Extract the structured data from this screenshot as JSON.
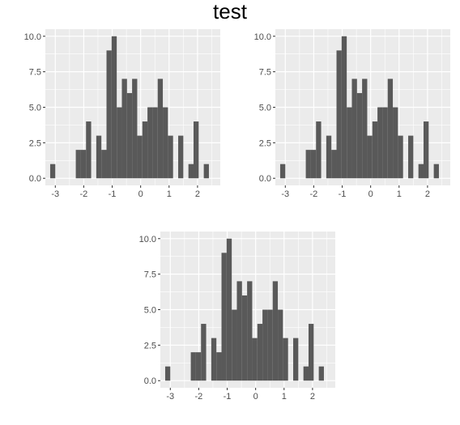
{
  "figure": {
    "title": "test"
  },
  "chart_data": [
    {
      "type": "bar",
      "title": "",
      "xlabel": "",
      "ylabel": "",
      "x_bin_starts": [
        -3.18,
        -3.0,
        -2.82,
        -2.64,
        -2.46,
        -2.28,
        -2.1,
        -1.92,
        -1.74,
        -1.56,
        -1.38,
        -1.2,
        -1.02,
        -0.84,
        -0.66,
        -0.48,
        -0.3,
        -0.12,
        0.06,
        0.24,
        0.42,
        0.6,
        0.78,
        0.96,
        1.14,
        1.32,
        1.5,
        1.68,
        1.86,
        2.04,
        2.22,
        2.4
      ],
      "bin_width": 0.18,
      "values": [
        1,
        0,
        0,
        0,
        0,
        2,
        2,
        4,
        0,
        3,
        2,
        9,
        10,
        5,
        7,
        6,
        7,
        3,
        4,
        5,
        5,
        7,
        5,
        3,
        0,
        3,
        0,
        1,
        4,
        0,
        1,
        0
      ],
      "xlim": [
        -3.35,
        2.8
      ],
      "ylim": [
        -0.5,
        10.5
      ],
      "x_ticks": [
        -3,
        -2,
        -1,
        0,
        1,
        2
      ],
      "x_tick_labels": [
        "-3",
        "-2",
        "-1",
        "0",
        "1",
        "2"
      ],
      "y_ticks": [
        0,
        2.5,
        5,
        7.5,
        10
      ],
      "y_tick_labels": [
        "0.0",
        "2.5",
        "5.0",
        "7.5",
        "10.0"
      ],
      "bar_color": "#595959",
      "panel_bg": "#ebebeb",
      "grid_color": "#ffffff"
    },
    {
      "type": "bar",
      "title": "",
      "xlabel": "",
      "ylabel": "",
      "x_bin_starts": [
        -3.18,
        -3.0,
        -2.82,
        -2.64,
        -2.46,
        -2.28,
        -2.1,
        -1.92,
        -1.74,
        -1.56,
        -1.38,
        -1.2,
        -1.02,
        -0.84,
        -0.66,
        -0.48,
        -0.3,
        -0.12,
        0.06,
        0.24,
        0.42,
        0.6,
        0.78,
        0.96,
        1.14,
        1.32,
        1.5,
        1.68,
        1.86,
        2.04,
        2.22,
        2.4
      ],
      "bin_width": 0.18,
      "values": [
        1,
        0,
        0,
        0,
        0,
        2,
        2,
        4,
        0,
        3,
        2,
        9,
        10,
        5,
        7,
        6,
        7,
        3,
        4,
        5,
        5,
        7,
        5,
        3,
        0,
        3,
        0,
        1,
        4,
        0,
        1,
        0
      ],
      "xlim": [
        -3.35,
        2.8
      ],
      "ylim": [
        -0.5,
        10.5
      ],
      "x_ticks": [
        -3,
        -2,
        -1,
        0,
        1,
        2
      ],
      "x_tick_labels": [
        "-3",
        "-2",
        "-1",
        "0",
        "1",
        "2"
      ],
      "y_ticks": [
        0,
        2.5,
        5,
        7.5,
        10
      ],
      "y_tick_labels": [
        "0.0",
        "2.5",
        "5.0",
        "7.5",
        "10.0"
      ],
      "bar_color": "#595959",
      "panel_bg": "#ebebeb",
      "grid_color": "#ffffff"
    },
    {
      "type": "bar",
      "title": "",
      "xlabel": "",
      "ylabel": "",
      "x_bin_starts": [
        -3.18,
        -3.0,
        -2.82,
        -2.64,
        -2.46,
        -2.28,
        -2.1,
        -1.92,
        -1.74,
        -1.56,
        -1.38,
        -1.2,
        -1.02,
        -0.84,
        -0.66,
        -0.48,
        -0.3,
        -0.12,
        0.06,
        0.24,
        0.42,
        0.6,
        0.78,
        0.96,
        1.14,
        1.32,
        1.5,
        1.68,
        1.86,
        2.04,
        2.22,
        2.4
      ],
      "bin_width": 0.18,
      "values": [
        1,
        0,
        0,
        0,
        0,
        2,
        2,
        4,
        0,
        3,
        2,
        9,
        10,
        5,
        7,
        6,
        7,
        3,
        4,
        5,
        5,
        7,
        5,
        3,
        0,
        3,
        0,
        1,
        4,
        0,
        1,
        0
      ],
      "xlim": [
        -3.35,
        2.8
      ],
      "ylim": [
        -0.5,
        10.5
      ],
      "x_ticks": [
        -3,
        -2,
        -1,
        0,
        1,
        2
      ],
      "x_tick_labels": [
        "-3",
        "-2",
        "-1",
        "0",
        "1",
        "2"
      ],
      "y_ticks": [
        0,
        2.5,
        5,
        7.5,
        10
      ],
      "y_tick_labels": [
        "0.0",
        "2.5",
        "5.0",
        "7.5",
        "10.0"
      ],
      "bar_color": "#595959",
      "panel_bg": "#ebebeb",
      "grid_color": "#ffffff"
    }
  ]
}
